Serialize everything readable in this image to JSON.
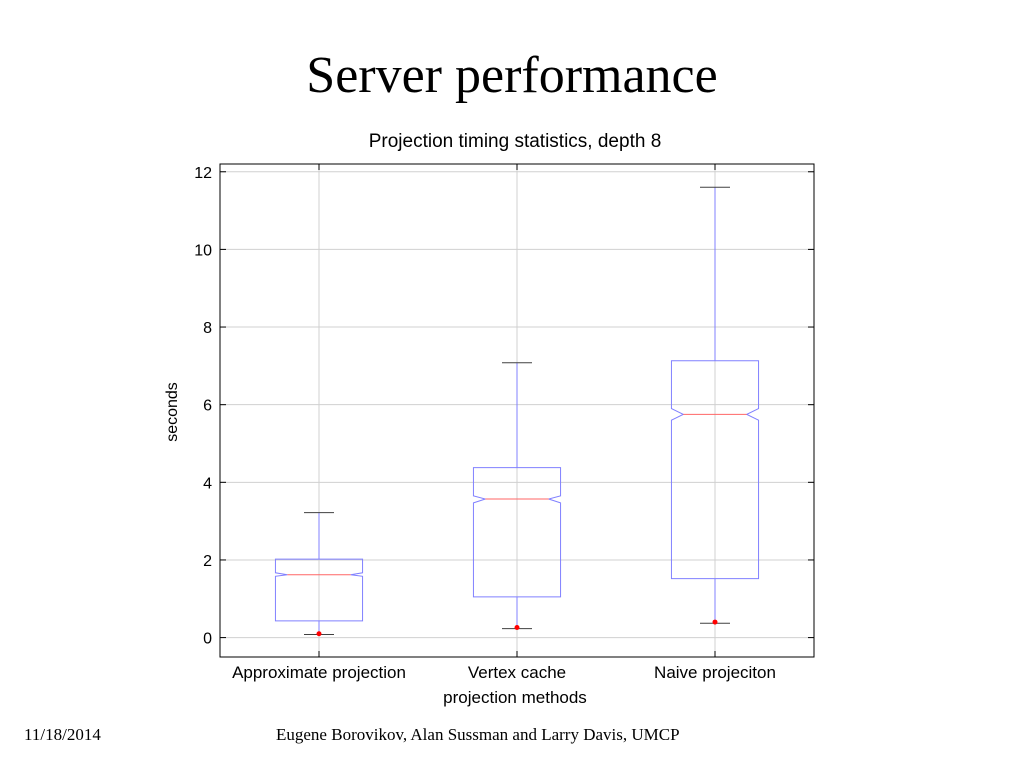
{
  "slide": {
    "title": "Server performance",
    "date": "11/18/2014",
    "credit": "Eugene Borovikov, Alan Sussman and Larry Davis, UMCP"
  },
  "colors": {
    "box": "#8080ff",
    "median": "#ff6666",
    "outlier": "#ff0000",
    "grid": "#d0d0d0",
    "axis": "#000000"
  },
  "chart_data": {
    "type": "boxplot",
    "title": "Projection timing statistics, depth 8",
    "xlabel": "projection methods",
    "ylabel": "seconds",
    "ylim": [
      -0.5,
      12.2
    ],
    "yticks": [
      0,
      2,
      4,
      6,
      8,
      10,
      12
    ],
    "grid": true,
    "notched": true,
    "categories": [
      "Approximate projection",
      "Vertex cache",
      "Naive projeciton"
    ],
    "boxes": [
      {
        "whisker_low": 0.08,
        "q1": 0.43,
        "median": 1.62,
        "q3": 2.02,
        "whisker_high": 3.22,
        "notch_low": 1.58,
        "notch_high": 1.67,
        "outliers": [
          0.1
        ]
      },
      {
        "whisker_low": 0.23,
        "q1": 1.05,
        "median": 3.57,
        "q3": 4.38,
        "whisker_high": 7.08,
        "notch_low": 3.47,
        "notch_high": 3.65,
        "outliers": [
          0.26
        ]
      },
      {
        "whisker_low": 0.37,
        "q1": 1.52,
        "median": 5.75,
        "q3": 7.13,
        "whisker_high": 11.6,
        "notch_low": 5.6,
        "notch_high": 5.9,
        "outliers": [
          0.4
        ]
      }
    ]
  }
}
